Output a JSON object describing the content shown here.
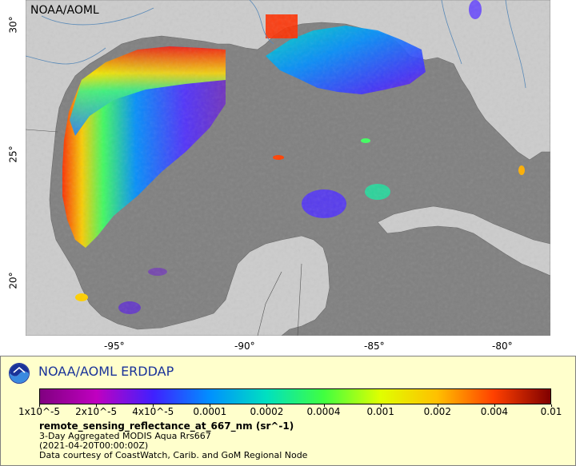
{
  "map": {
    "label": "NOAA/AOML",
    "x_ticks": [
      "-95°",
      "-90°",
      "-85°",
      "-80°"
    ],
    "y_ticks": [
      "30°",
      "25°",
      "20°"
    ],
    "colors": {
      "ocean": "#808080",
      "land": "#cccccc",
      "border": "#555555",
      "river": "#5a8ab8"
    }
  },
  "legend": {
    "title": "NOAA/AOML ERDDAP",
    "colorbar_labels": [
      "1x10^-5",
      "2x10^-5",
      "4x10^-5",
      "0.0001",
      "0.0002",
      "0.0004",
      "0.001",
      "0.002",
      "0.004",
      "0.01"
    ],
    "colorbar_stops": [
      "#800080",
      "#c000c0",
      "#4020ff",
      "#0090ff",
      "#00e0c0",
      "#40ff40",
      "#e0ff00",
      "#ffc000",
      "#ff4000",
      "#800000"
    ],
    "variable": "remote_sensing_reflectance_at_667_nm (sr^-1)",
    "lines": [
      "3-Day Aggregated MODIS Aqua Rrs667",
      "(2021-04-20T00:00:00Z)",
      "Data courtesy of CoastWatch, Carib. and GoM Regional Node"
    ]
  }
}
